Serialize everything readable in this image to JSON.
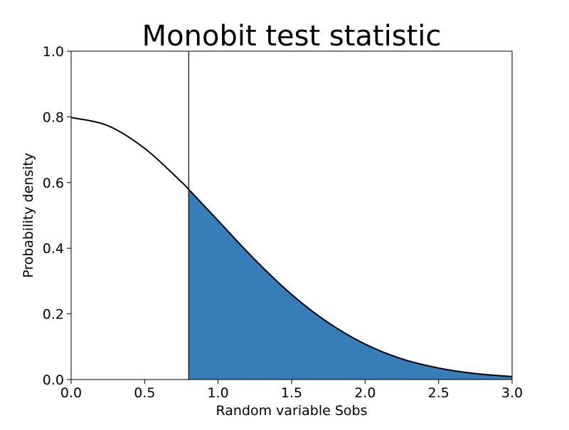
{
  "chart_data": {
    "type": "area",
    "title": "Monobit test statistic",
    "xlabel": "Random variable Sobs",
    "ylabel": "Probability density",
    "xlim": [
      0.0,
      3.0
    ],
    "ylim": [
      0.0,
      1.0
    ],
    "xticks": [
      "0.0",
      "0.5",
      "1.0",
      "1.5",
      "2.0",
      "2.5",
      "3.0"
    ],
    "yticks": [
      "0.0",
      "0.2",
      "0.4",
      "0.6",
      "0.8",
      "1.0"
    ],
    "grid": false,
    "series": [
      {
        "x": [
          0.0,
          0.25,
          0.5,
          0.75,
          0.8,
          1.0,
          1.25,
          1.5,
          1.75,
          2.0,
          2.25,
          2.5,
          2.75,
          3.0
        ],
        "y": [
          0.798,
          0.773,
          0.704,
          0.602,
          0.579,
          0.484,
          0.365,
          0.259,
          0.173,
          0.108,
          0.063,
          0.035,
          0.018,
          0.009
        ]
      }
    ],
    "threshold_x": 0.8,
    "shaded_region": {
      "from_x": 0.8,
      "to_x": 3.0
    },
    "colors": {
      "line": "#000000",
      "fill": "#377eb8",
      "axes": "#000000"
    }
  }
}
